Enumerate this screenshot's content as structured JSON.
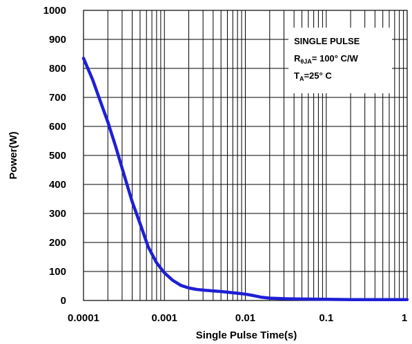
{
  "chart_data": {
    "type": "line",
    "title": "",
    "xlabel": "Single Pulse Time(s)",
    "ylabel": "Power(W)",
    "x_scale": "log",
    "xlim": [
      0.0001,
      1
    ],
    "ylim": [
      0,
      1000
    ],
    "grid": true,
    "x_ticks": [
      "0.0001",
      "0.001",
      "0.01",
      "0.1",
      "1"
    ],
    "y_ticks": [
      "0",
      "100",
      "200",
      "300",
      "400",
      "500",
      "600",
      "700",
      "800",
      "900",
      "1000"
    ],
    "annotation": {
      "line1": "SINGLE PULSE",
      "line2_main": "R",
      "line2_sub": "θJA",
      "line2_rest": "= 100° C/W",
      "line3_main": "T",
      "line3_sub": "A",
      "line3_rest": "=25° C"
    },
    "series": [
      {
        "color": "#1f1fd6",
        "x": [
          0.0001,
          0.00013,
          0.00016,
          0.0002,
          0.00025,
          0.00032,
          0.0004,
          0.0005,
          0.00063,
          0.0008,
          0.001,
          0.00126,
          0.0016,
          0.002,
          0.0025,
          0.0032,
          0.004,
          0.005,
          0.0063,
          0.008,
          0.01,
          0.0126,
          0.016,
          0.02,
          0.032,
          0.05,
          0.1,
          0.2,
          0.5,
          1
        ],
        "y": [
          835,
          760,
          690,
          615,
          530,
          430,
          340,
          265,
          185,
          130,
          95,
          70,
          52,
          43,
          38,
          35,
          33,
          31,
          28,
          25,
          22,
          17,
          11,
          8,
          6,
          5,
          4,
          3,
          3,
          3
        ]
      }
    ]
  }
}
